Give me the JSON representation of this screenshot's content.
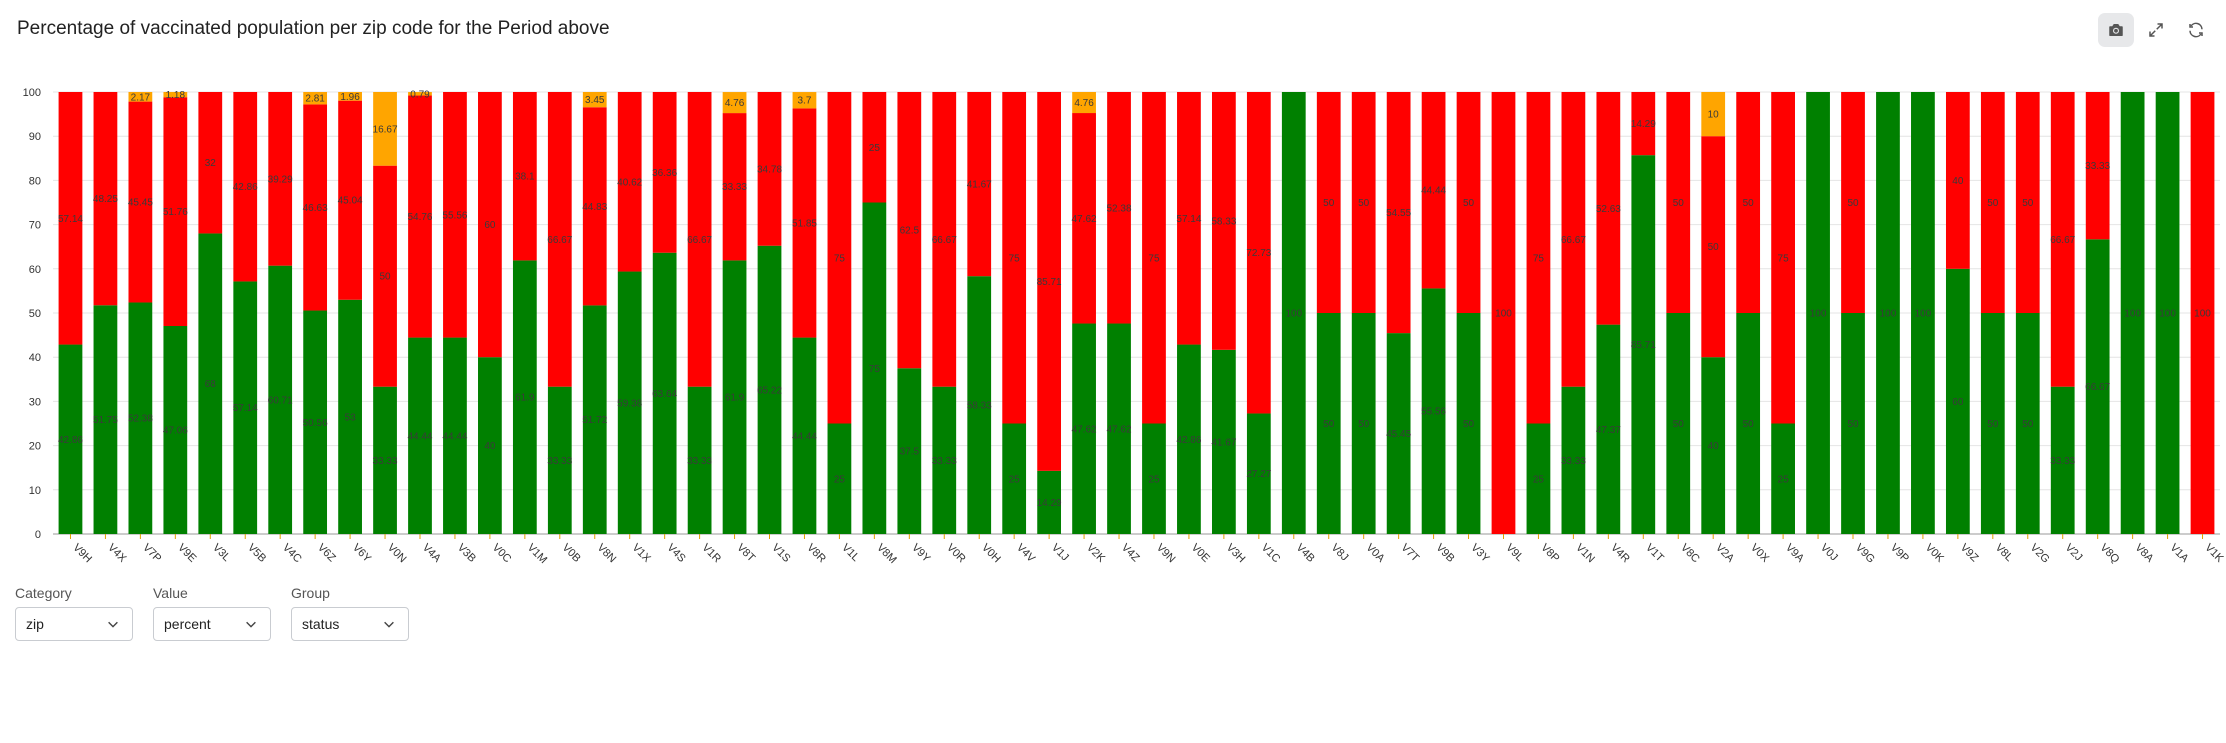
{
  "title": "Percentage of vaccinated population per zip code for the Period above",
  "toolbar": {
    "icons": [
      "camera-icon",
      "expand-icon",
      "refresh-icon"
    ]
  },
  "controls": [
    {
      "label": "Category",
      "value": "zip"
    },
    {
      "label": "Value",
      "value": "percent"
    },
    {
      "label": "Group",
      "value": "status"
    }
  ],
  "colors": {
    "green": "#008000",
    "red": "#ff0000",
    "orange": "#ffa500"
  },
  "chart_data": {
    "type": "bar",
    "stacked": true,
    "ylim": [
      0,
      100
    ],
    "yticks": [
      0,
      10,
      20,
      30,
      40,
      50,
      60,
      70,
      80,
      90,
      100
    ],
    "grid": true,
    "categories": [
      "V9H",
      "V4X",
      "V7P",
      "V9E",
      "V3L",
      "V5B",
      "V4C",
      "V6Z",
      "V6Y",
      "V0N",
      "V4A",
      "V3B",
      "V0C",
      "V1M",
      "V0B",
      "V8N",
      "V1X",
      "V4S",
      "V1R",
      "V8T",
      "V1S",
      "V8R",
      "V1L",
      "V8M",
      "V9Y",
      "V0R",
      "V0H",
      "V4V",
      "V1J",
      "V2K",
      "V4Z",
      "V9N",
      "V0E",
      "V3H",
      "V1C",
      "V4B",
      "V8J",
      "V0A",
      "V7T",
      "V9B",
      "V3Y",
      "V9L",
      "V8P",
      "V1N",
      "V4R",
      "V1T",
      "V8C",
      "V2A",
      "V0X",
      "V9A",
      "V0J",
      "V9G",
      "V9P",
      "V0K",
      "V9Z",
      "V8L",
      "V2G",
      "V2J",
      "V8Q",
      "V8A",
      "V1A",
      "V1K"
    ],
    "series": [
      {
        "color": "#008000",
        "values": [
          42.86,
          51.75,
          52.38,
          47.06,
          68,
          57.14,
          60.71,
          50.56,
          53,
          33.33,
          44.44,
          44.44,
          40,
          61.9,
          33.33,
          51.72,
          59.38,
          63.64,
          33.33,
          61.9,
          65.22,
          44.44,
          25,
          75,
          37.5,
          33.33,
          58.33,
          25,
          14.29,
          47.62,
          47.62,
          25,
          42.86,
          41.67,
          27.27,
          100,
          50,
          50,
          45.45,
          55.56,
          50,
          0,
          25,
          33.33,
          47.37,
          85.71,
          50,
          40,
          50,
          25,
          100,
          50,
          100,
          100,
          60,
          50,
          50,
          33.33,
          66.67,
          100,
          100,
          0
        ]
      },
      {
        "color": "#ff0000",
        "values": [
          57.14,
          48.25,
          45.45,
          51.76,
          32,
          42.86,
          39.29,
          46.63,
          45.04,
          50,
          54.76,
          55.56,
          60,
          38.1,
          66.67,
          44.83,
          40.62,
          36.36,
          66.67,
          33.33,
          34.78,
          51.85,
          75,
          25,
          62.5,
          66.67,
          41.67,
          75,
          85.71,
          47.62,
          52.38,
          75,
          57.14,
          58.33,
          72.73,
          0,
          50,
          50,
          54.55,
          44.44,
          50,
          100,
          75,
          66.67,
          52.63,
          14.29,
          50,
          50,
          50,
          75,
          0,
          50,
          0,
          0,
          40,
          50,
          50,
          66.67,
          33.33,
          0,
          0,
          100
        ]
      },
      {
        "color": "#ffa500",
        "values": [
          0,
          0,
          2.17,
          1.18,
          0,
          0,
          0,
          2.81,
          1.96,
          16.67,
          0.79,
          0,
          0,
          0,
          0,
          3.45,
          0,
          0,
          0,
          4.76,
          0,
          3.7,
          0,
          0,
          0,
          0,
          0,
          0,
          0,
          4.76,
          0,
          0,
          0,
          0,
          0,
          0,
          0,
          0,
          0,
          0,
          0,
          0,
          0,
          0,
          0,
          0,
          0,
          10,
          0,
          0,
          0,
          0,
          0,
          0,
          0,
          0,
          0,
          0,
          0,
          0,
          0,
          0
        ]
      }
    ],
    "value_labels": [
      [
        "42.86",
        "51.75",
        "52.38",
        "47.06",
        "68",
        "57.14",
        "60.71",
        "50.56",
        "53",
        "33.33",
        "44.44",
        "44.44",
        "40",
        "61.9",
        "33.33",
        "51.72",
        "59.38",
        "63.64",
        "33.33",
        "61.9",
        "65.22",
        "44.44",
        "25",
        "75",
        "37.5",
        "33.33",
        "58.33",
        "25",
        "14.29",
        "47.62",
        "47.62",
        "25",
        "42.86",
        "41.67",
        "27.27",
        "100",
        "50",
        "50",
        "45.45",
        "55.56",
        "50",
        "0",
        "25",
        "33.33",
        "47.37",
        "85.71",
        "50",
        "40",
        "50",
        "25",
        "100",
        "50",
        "100",
        "100",
        "60",
        "50",
        "50",
        "33.33",
        "66.67",
        "100",
        "100",
        "0"
      ],
      [
        "57.14",
        "48.25",
        "45.45",
        "51.76",
        "32",
        "42.86",
        "39.29",
        "46.63",
        "45.04",
        "50",
        "54.76",
        "55.56",
        "60",
        "38.1",
        "66.67",
        "44.83",
        "40.62",
        "36.36",
        "66.67",
        "33.33",
        "34.78",
        "51.85",
        "75",
        "25",
        "62.5",
        "66.67",
        "41.67",
        "75",
        "85.71",
        "47.62",
        "52.38",
        "75",
        "57.14",
        "58.33",
        "72.73",
        "0",
        "50",
        "50",
        "54.55",
        "44.44",
        "50",
        "100",
        "75",
        "66.67",
        "52.63",
        "14.29",
        "50",
        "50",
        "50",
        "75",
        "0",
        "50",
        "0",
        "0",
        "40",
        "50",
        "50",
        "66.67",
        "33.33",
        "0",
        "0",
        "100"
      ],
      [
        "",
        "",
        "2.17",
        "1.18",
        "",
        "",
        "",
        "2.81",
        "1.96",
        "16.67",
        "0.79",
        "",
        "",
        "",
        "",
        "3.45",
        "",
        "",
        "",
        "4.76",
        "",
        "3.7",
        "",
        "",
        "",
        "",
        "",
        "",
        "",
        "4.76",
        "",
        "",
        "",
        "",
        "",
        "",
        "",
        "",
        "",
        "",
        "",
        "",
        "",
        "",
        "",
        "",
        "",
        "10",
        "",
        "",
        "",
        "",
        "",
        "",
        "",
        "",
        "",
        "",
        "",
        "",
        "",
        ""
      ]
    ]
  }
}
